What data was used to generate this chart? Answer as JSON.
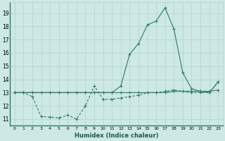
{
  "xlabel": "Humidex (Indice chaleur)",
  "x": [
    0,
    1,
    2,
    3,
    4,
    5,
    6,
    7,
    8,
    9,
    10,
    11,
    12,
    13,
    14,
    15,
    16,
    17,
    18,
    19,
    20,
    21,
    22,
    23
  ],
  "line_top_y": [
    13.0,
    13.0,
    13.0,
    13.0,
    13.0,
    13.0,
    13.0,
    13.0,
    13.0,
    13.0,
    13.0,
    13.0,
    13.5,
    15.9,
    16.7,
    18.1,
    18.4,
    19.4,
    17.8,
    14.5,
    13.3,
    13.1,
    13.0,
    13.8
  ],
  "line_mid_y": [
    13.0,
    13.0,
    13.0,
    13.0,
    13.0,
    13.0,
    13.0,
    13.0,
    13.0,
    13.0,
    13.0,
    13.0,
    13.0,
    13.0,
    13.0,
    13.0,
    13.0,
    13.0,
    13.1,
    13.1,
    13.1,
    13.1,
    13.1,
    13.2
  ],
  "line_bot_y": [
    13.0,
    13.0,
    12.7,
    11.2,
    11.15,
    11.1,
    11.3,
    11.0,
    12.0,
    13.5,
    12.5,
    12.5,
    12.6,
    12.7,
    12.8,
    13.0,
    13.0,
    13.1,
    13.2,
    13.1,
    13.0,
    13.0,
    13.0,
    13.8
  ],
  "ylim": [
    10.5,
    19.8
  ],
  "yticks": [
    11,
    12,
    13,
    14,
    15,
    16,
    17,
    18,
    19
  ],
  "background_color": "#cde8e5",
  "grid_color": "#aed4d0",
  "line_color": "#2a7a6e"
}
